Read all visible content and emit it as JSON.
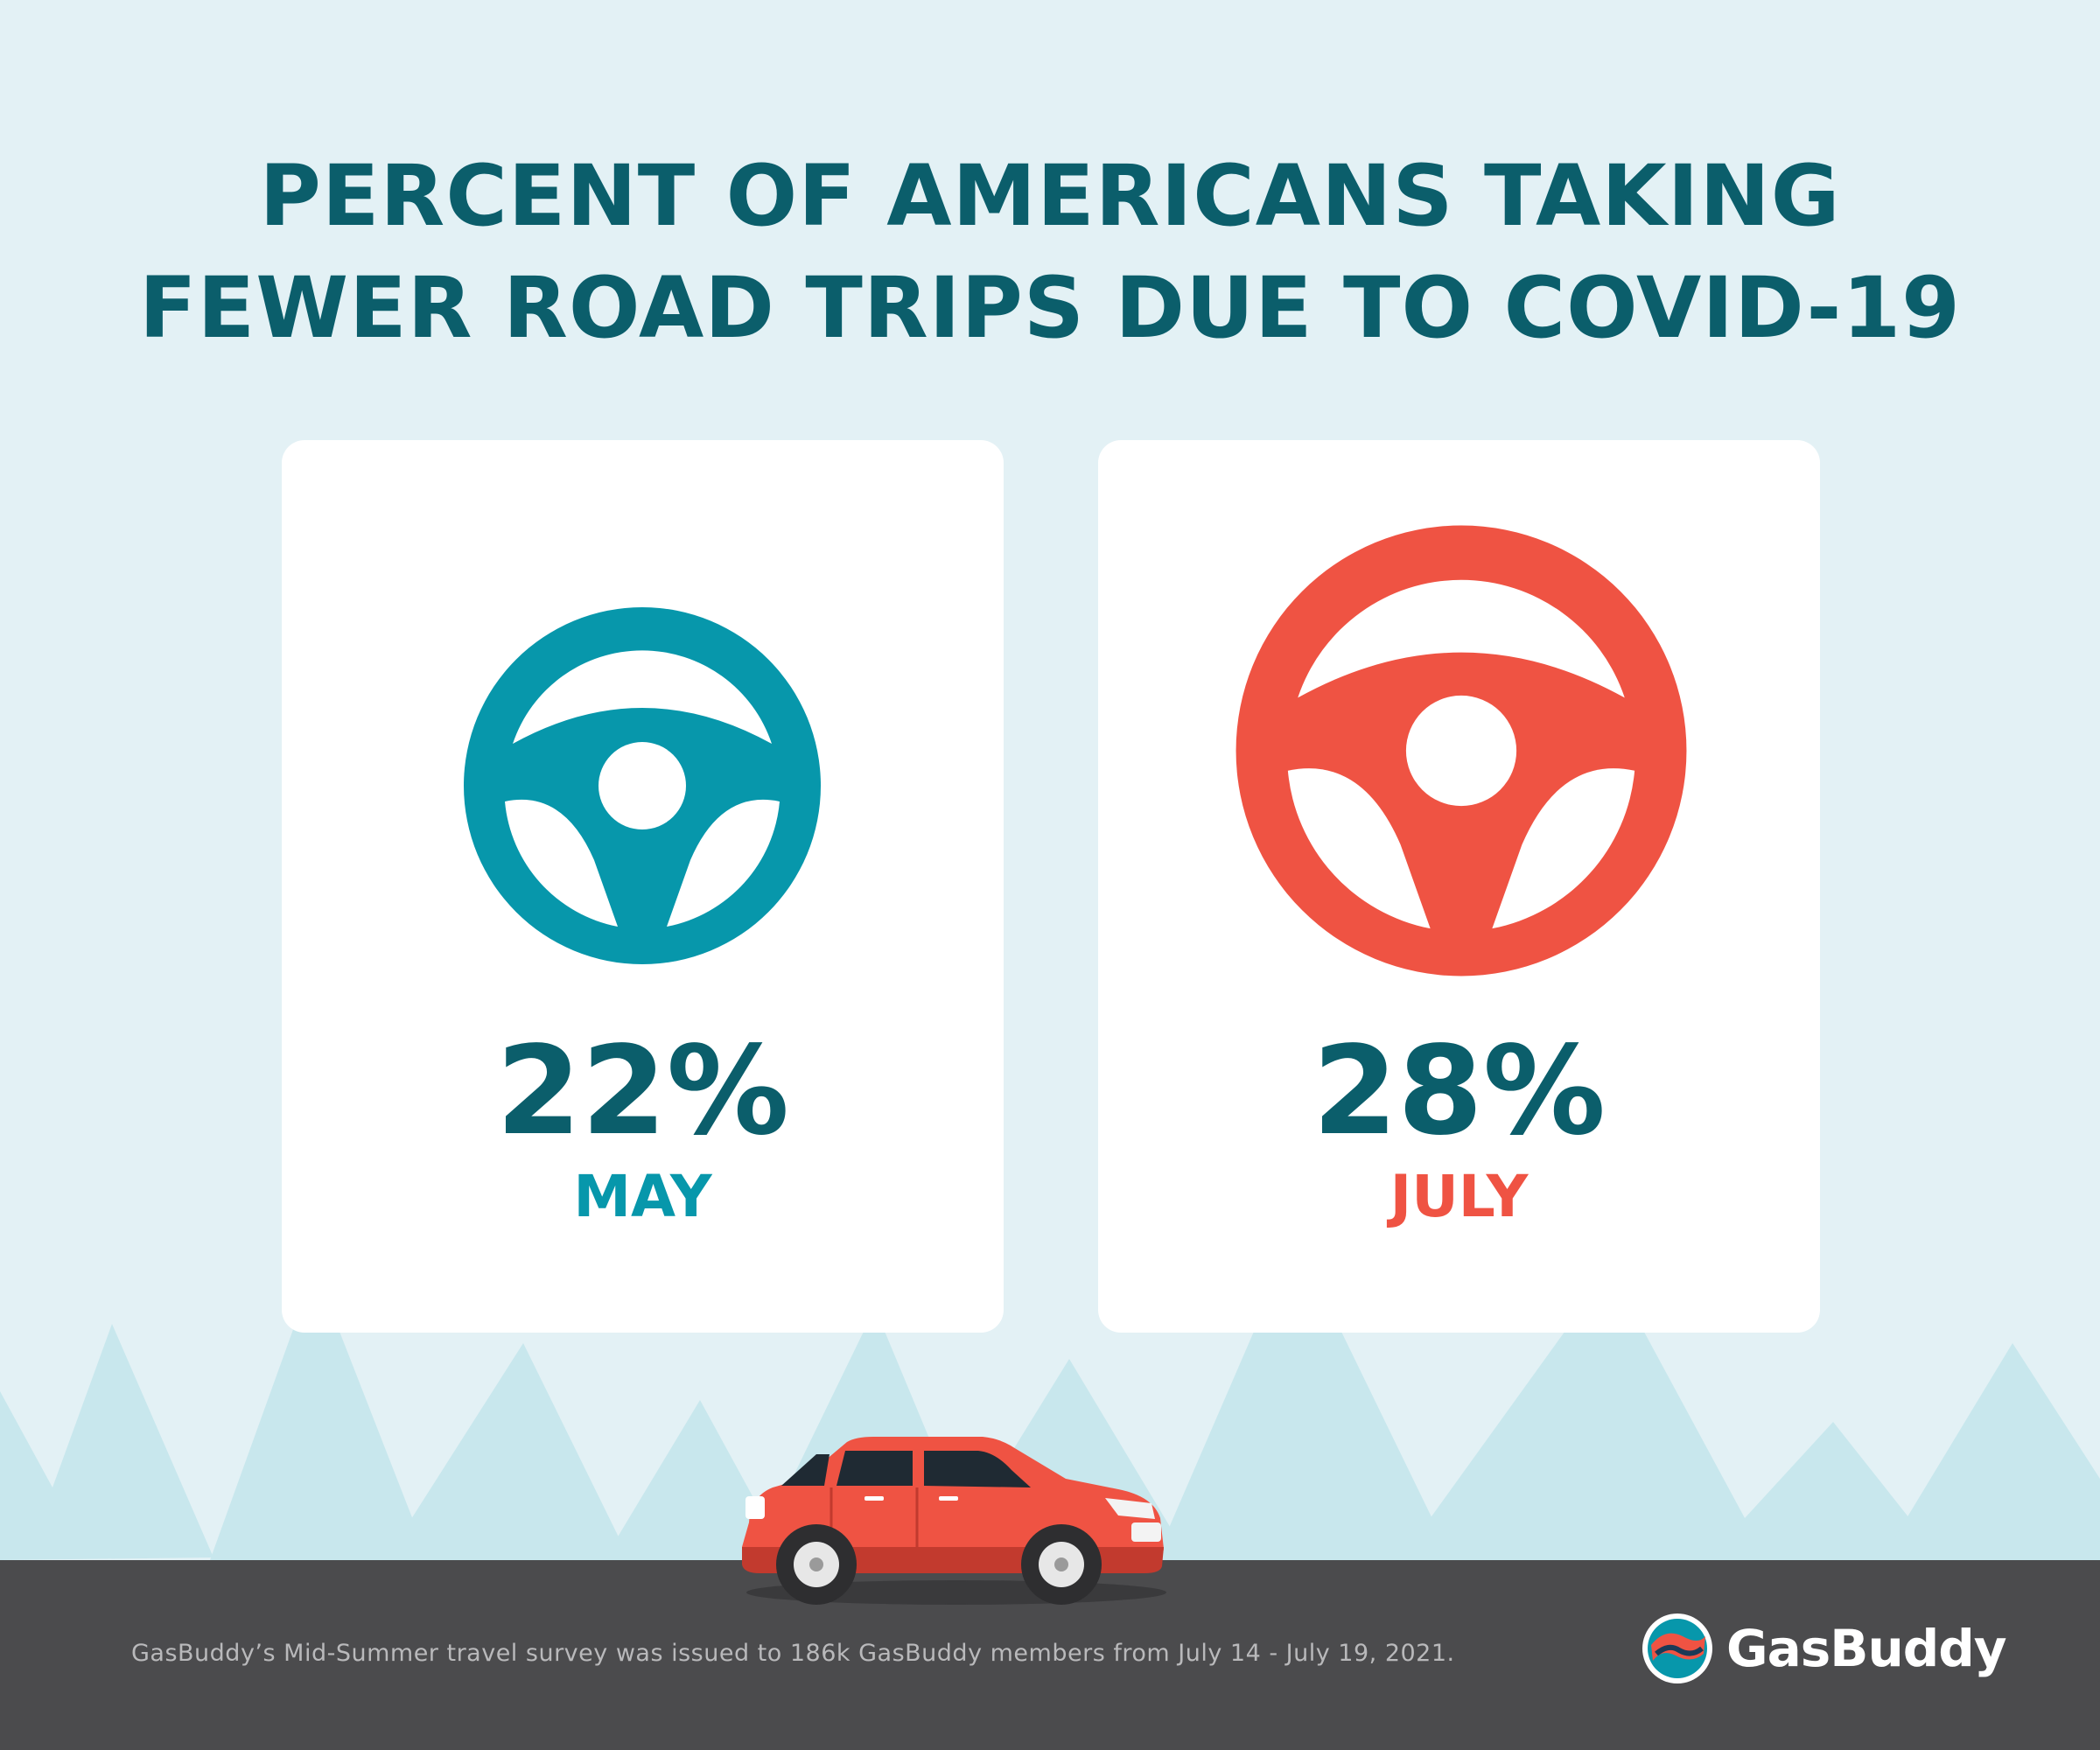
{
  "title_lines": [
    "PERCENT OF AMERICANS TAKING",
    "FEWER ROAD TRIPS DUE TO COVID-19"
  ],
  "chart_data": {
    "type": "bar",
    "title": "PERCENT OF AMERICANS TAKING FEWER ROAD TRIPS DUE TO COVID-19",
    "categories": [
      "MAY",
      "JULY"
    ],
    "values": [
      22,
      28
    ],
    "value_labels": [
      "22%",
      "28%"
    ],
    "unit": "%",
    "series_colors": [
      "#0797ab",
      "#ef5343"
    ]
  },
  "colors": {
    "background": "#e3f1f5",
    "title": "#0b5e6b",
    "may": "#0797ab",
    "july": "#ef5343",
    "road": "#4b4b4d",
    "trees": "#c8e7ed"
  },
  "icons": {
    "may": "steering-wheel-icon",
    "july": "steering-wheel-icon",
    "vehicle": "car-icon",
    "brand": "gasbuddy-logo-icon"
  },
  "footnote": "GasBuddy’s Mid-Summer travel survey was issued to 186k GasBuddy members from July 14 - July 19, 2021.",
  "logo_text": "GasBuddy"
}
